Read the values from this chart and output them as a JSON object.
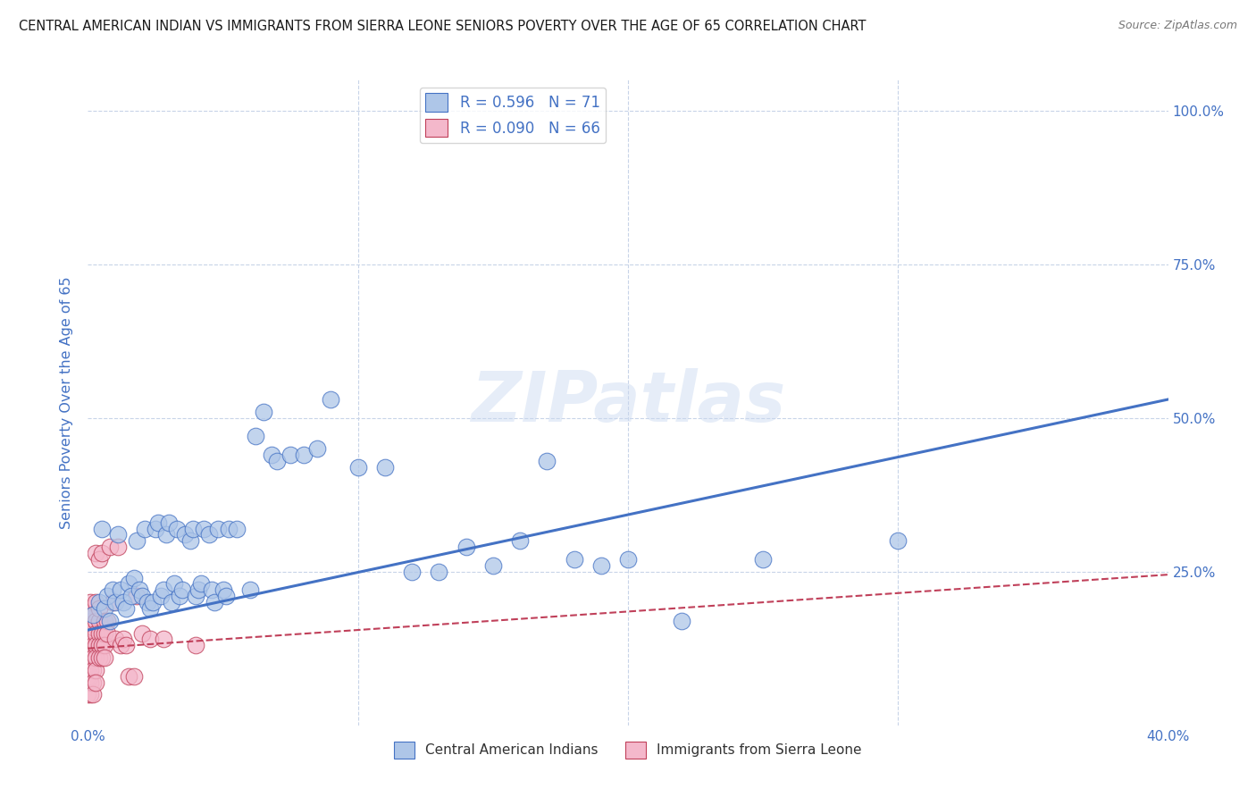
{
  "title": "CENTRAL AMERICAN INDIAN VS IMMIGRANTS FROM SIERRA LEONE SENIORS POVERTY OVER THE AGE OF 65 CORRELATION CHART",
  "source": "Source: ZipAtlas.com",
  "xlabel_blue": "Central American Indians",
  "xlabel_pink": "Immigrants from Sierra Leone",
  "ylabel": "Seniors Poverty Over the Age of 65",
  "xlim": [
    0.0,
    0.4
  ],
  "ylim": [
    0.0,
    1.05
  ],
  "R_blue": 0.596,
  "N_blue": 71,
  "R_pink": 0.09,
  "N_pink": 66,
  "color_blue": "#aec6e8",
  "color_pink": "#f4b8cb",
  "line_blue": "#4472c4",
  "line_pink": "#c0405a",
  "legend_color": "#4472c4",
  "watermark": "ZIPatlas",
  "grid_color": "#c8d4e8",
  "blue_scatter": [
    [
      0.002,
      0.18
    ],
    [
      0.004,
      0.2
    ],
    [
      0.005,
      0.32
    ],
    [
      0.006,
      0.19
    ],
    [
      0.007,
      0.21
    ],
    [
      0.008,
      0.17
    ],
    [
      0.009,
      0.22
    ],
    [
      0.01,
      0.2
    ],
    [
      0.011,
      0.31
    ],
    [
      0.012,
      0.22
    ],
    [
      0.013,
      0.2
    ],
    [
      0.014,
      0.19
    ],
    [
      0.015,
      0.23
    ],
    [
      0.016,
      0.21
    ],
    [
      0.017,
      0.24
    ],
    [
      0.018,
      0.3
    ],
    [
      0.019,
      0.22
    ],
    [
      0.02,
      0.21
    ],
    [
      0.021,
      0.32
    ],
    [
      0.022,
      0.2
    ],
    [
      0.023,
      0.19
    ],
    [
      0.024,
      0.2
    ],
    [
      0.025,
      0.32
    ],
    [
      0.026,
      0.33
    ],
    [
      0.027,
      0.21
    ],
    [
      0.028,
      0.22
    ],
    [
      0.029,
      0.31
    ],
    [
      0.03,
      0.33
    ],
    [
      0.031,
      0.2
    ],
    [
      0.032,
      0.23
    ],
    [
      0.033,
      0.32
    ],
    [
      0.034,
      0.21
    ],
    [
      0.035,
      0.22
    ],
    [
      0.036,
      0.31
    ],
    [
      0.038,
      0.3
    ],
    [
      0.039,
      0.32
    ],
    [
      0.04,
      0.21
    ],
    [
      0.041,
      0.22
    ],
    [
      0.042,
      0.23
    ],
    [
      0.043,
      0.32
    ],
    [
      0.045,
      0.31
    ],
    [
      0.046,
      0.22
    ],
    [
      0.047,
      0.2
    ],
    [
      0.048,
      0.32
    ],
    [
      0.05,
      0.22
    ],
    [
      0.051,
      0.21
    ],
    [
      0.052,
      0.32
    ],
    [
      0.055,
      0.32
    ],
    [
      0.06,
      0.22
    ],
    [
      0.062,
      0.47
    ],
    [
      0.065,
      0.51
    ],
    [
      0.068,
      0.44
    ],
    [
      0.07,
      0.43
    ],
    [
      0.075,
      0.44
    ],
    [
      0.08,
      0.44
    ],
    [
      0.085,
      0.45
    ],
    [
      0.09,
      0.53
    ],
    [
      0.1,
      0.42
    ],
    [
      0.11,
      0.42
    ],
    [
      0.12,
      0.25
    ],
    [
      0.13,
      0.25
    ],
    [
      0.14,
      0.29
    ],
    [
      0.15,
      0.26
    ],
    [
      0.16,
      0.3
    ],
    [
      0.17,
      0.43
    ],
    [
      0.18,
      0.27
    ],
    [
      0.19,
      0.26
    ],
    [
      0.2,
      0.27
    ],
    [
      0.22,
      0.17
    ],
    [
      0.25,
      0.27
    ],
    [
      0.3,
      0.3
    ]
  ],
  "pink_scatter": [
    [
      0.0,
      0.18
    ],
    [
      0.0,
      0.15
    ],
    [
      0.0,
      0.12
    ],
    [
      0.0,
      0.08
    ],
    [
      0.0,
      0.1
    ],
    [
      0.0,
      0.07
    ],
    [
      0.0,
      0.05
    ],
    [
      0.0,
      0.14
    ],
    [
      0.001,
      0.17
    ],
    [
      0.001,
      0.19
    ],
    [
      0.001,
      0.15
    ],
    [
      0.001,
      0.12
    ],
    [
      0.001,
      0.1
    ],
    [
      0.001,
      0.08
    ],
    [
      0.001,
      0.2
    ],
    [
      0.001,
      0.14
    ],
    [
      0.001,
      0.11
    ],
    [
      0.001,
      0.09
    ],
    [
      0.001,
      0.07
    ],
    [
      0.001,
      0.05
    ],
    [
      0.002,
      0.18
    ],
    [
      0.002,
      0.15
    ],
    [
      0.002,
      0.13
    ],
    [
      0.002,
      0.11
    ],
    [
      0.002,
      0.09
    ],
    [
      0.002,
      0.07
    ],
    [
      0.002,
      0.05
    ],
    [
      0.002,
      0.16
    ],
    [
      0.003,
      0.17
    ],
    [
      0.003,
      0.15
    ],
    [
      0.003,
      0.13
    ],
    [
      0.003,
      0.11
    ],
    [
      0.003,
      0.09
    ],
    [
      0.003,
      0.07
    ],
    [
      0.003,
      0.28
    ],
    [
      0.003,
      0.2
    ],
    [
      0.004,
      0.17
    ],
    [
      0.004,
      0.15
    ],
    [
      0.004,
      0.13
    ],
    [
      0.004,
      0.11
    ],
    [
      0.004,
      0.27
    ],
    [
      0.004,
      0.19
    ],
    [
      0.005,
      0.15
    ],
    [
      0.005,
      0.13
    ],
    [
      0.005,
      0.11
    ],
    [
      0.005,
      0.28
    ],
    [
      0.006,
      0.17
    ],
    [
      0.006,
      0.15
    ],
    [
      0.006,
      0.13
    ],
    [
      0.006,
      0.11
    ],
    [
      0.007,
      0.17
    ],
    [
      0.007,
      0.15
    ],
    [
      0.008,
      0.29
    ],
    [
      0.009,
      0.2
    ],
    [
      0.01,
      0.14
    ],
    [
      0.011,
      0.29
    ],
    [
      0.012,
      0.13
    ],
    [
      0.013,
      0.14
    ],
    [
      0.014,
      0.13
    ],
    [
      0.015,
      0.08
    ],
    [
      0.017,
      0.08
    ],
    [
      0.018,
      0.21
    ],
    [
      0.02,
      0.15
    ],
    [
      0.023,
      0.14
    ],
    [
      0.028,
      0.14
    ],
    [
      0.04,
      0.13
    ]
  ],
  "blue_line_x": [
    0.0,
    0.4
  ],
  "blue_line_y": [
    0.155,
    0.53
  ],
  "pink_line_x": [
    0.0,
    0.4
  ],
  "pink_line_y": [
    0.125,
    0.245
  ],
  "bg_color": "#ffffff",
  "title_fontsize": 10.5,
  "axis_label_color": "#4472c4",
  "tick_color": "#4472c4"
}
